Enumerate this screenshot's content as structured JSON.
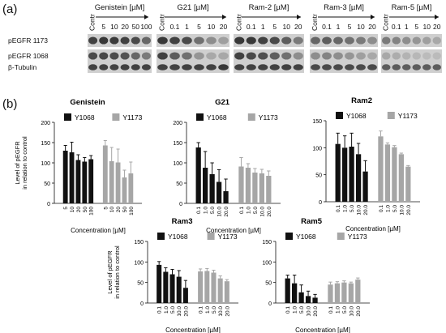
{
  "figure": {
    "panel_a_label": "(a)",
    "panel_b_label": "(b)",
    "blots": {
      "row_labels": [
        "pEGFR 1173",
        "pEGFR 1068",
        "β-Tubulin"
      ],
      "groups": [
        {
          "title": "Genistein [µM]",
          "lanes": [
            "Contr",
            "5",
            "10",
            "20",
            "50",
            "100"
          ]
        },
        {
          "title": "G21 [µM]",
          "lanes": [
            "Contr",
            "0.1",
            "1",
            "5",
            "10",
            "20"
          ]
        },
        {
          "title": "Ram-2 [µM]",
          "lanes": [
            "Contr",
            "0.1",
            "1",
            "5",
            "10",
            "20"
          ]
        },
        {
          "title": "Ram-3 [µM]",
          "lanes": [
            "Contr",
            "0.1",
            "1",
            "5",
            "10",
            "20"
          ]
        },
        {
          "title": "Ram-5 [µM]",
          "lanes": [
            "Contr",
            "0.1",
            "1",
            "5",
            "10",
            "20"
          ]
        }
      ]
    }
  },
  "chart_data": [
    {
      "type": "bar",
      "title": "Genistein",
      "ylabel": "Level of pEGFR in relation to control",
      "xlabel": "Concentration [µM]",
      "categories": [
        "5",
        "10",
        "20",
        "50",
        "100"
      ],
      "ylim": [
        0,
        200
      ],
      "yticks": [
        0,
        50,
        100,
        150,
        200
      ],
      "series": [
        {
          "name": "Y1068",
          "color": "#111111",
          "values": [
            130,
            126,
            107,
            103,
            109
          ],
          "errors": [
            13,
            25,
            13,
            10,
            9
          ]
        },
        {
          "name": "Y1173",
          "color": "#a6a6a6",
          "values": [
            143,
            104,
            101,
            64,
            74
          ],
          "errors": [
            12,
            34,
            33,
            18,
            28
          ]
        }
      ]
    },
    {
      "type": "bar",
      "title": "G21",
      "ylabel": "",
      "xlabel": "Concentration [µM]",
      "categories": [
        "0.1",
        "1.0",
        "5.0",
        "10.0",
        "20.0"
      ],
      "ylim": [
        0,
        200
      ],
      "yticks": [
        0,
        50,
        100,
        150,
        200
      ],
      "series": [
        {
          "name": "Y1068",
          "color": "#111111",
          "values": [
            138,
            88,
            72,
            53,
            30
          ],
          "errors": [
            12,
            40,
            28,
            30,
            30
          ]
        },
        {
          "name": "Y1173",
          "color": "#a6a6a6",
          "values": [
            91,
            88,
            76,
            74,
            68
          ],
          "errors": [
            22,
            10,
            10,
            10,
            12
          ]
        }
      ]
    },
    {
      "type": "bar",
      "title": "Ram2",
      "ylabel": "",
      "xlabel": "Concentration [µM]",
      "categories": [
        "0.1",
        "1.0",
        "5.0",
        "10.0",
        "20.0"
      ],
      "ylim": [
        0,
        150
      ],
      "yticks": [
        0,
        50,
        100,
        150
      ],
      "series": [
        {
          "name": "Y1068",
          "color": "#111111",
          "values": [
            107,
            100,
            102,
            88,
            56
          ],
          "errors": [
            20,
            22,
            25,
            20,
            20
          ]
        },
        {
          "name": "Y1173",
          "color": "#a6a6a6",
          "values": [
            121,
            106,
            101,
            88,
            65
          ],
          "errors": [
            10,
            3,
            3,
            2,
            2
          ]
        }
      ]
    },
    {
      "type": "bar",
      "title": "Ram3",
      "ylabel": "Level of pEGFR in relation to control",
      "xlabel": "Concentration [µM]",
      "categories": [
        "0.1",
        "1.0",
        "5.0",
        "10.0",
        "20.0"
      ],
      "ylim": [
        0,
        150
      ],
      "yticks": [
        0,
        50,
        100,
        150
      ],
      "series": [
        {
          "name": "Y1068",
          "color": "#111111",
          "values": [
            93,
            76,
            70,
            64,
            37
          ],
          "errors": [
            8,
            10,
            12,
            15,
            18
          ]
        },
        {
          "name": "Y1173",
          "color": "#a6a6a6",
          "values": [
            77,
            78,
            74,
            60,
            53
          ],
          "errors": [
            6,
            6,
            6,
            6,
            4
          ]
        }
      ]
    },
    {
      "type": "bar",
      "title": "Ram5",
      "ylabel": "",
      "xlabel": "Concentration [µM]",
      "categories": [
        "0.1",
        "1.0",
        "5.0",
        "10.0",
        "20.0"
      ],
      "ylim": [
        0,
        150
      ],
      "yticks": [
        0,
        50,
        100,
        150
      ],
      "series": [
        {
          "name": "Y1068",
          "color": "#111111",
          "values": [
            60,
            48,
            26,
            17,
            13
          ],
          "errors": [
            8,
            20,
            18,
            12,
            8
          ]
        },
        {
          "name": "Y1173",
          "color": "#a6a6a6",
          "values": [
            45,
            48,
            50,
            48,
            57
          ],
          "errors": [
            6,
            4,
            4,
            3,
            4
          ]
        }
      ]
    }
  ]
}
